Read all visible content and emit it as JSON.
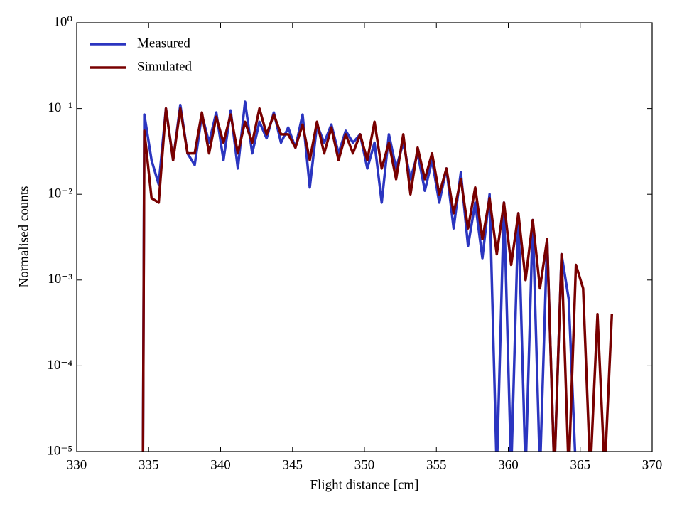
{
  "chart_data": {
    "type": "line",
    "xlabel": "Flight distance [cm]",
    "ylabel": "Normalised counts",
    "xlim": [
      330,
      370
    ],
    "xticks": [
      330,
      335,
      340,
      345,
      350,
      355,
      360,
      365,
      370
    ],
    "ylim": [
      1e-05,
      1
    ],
    "yticks": [
      {
        "value": 1e-05,
        "label": "10⁻⁵"
      },
      {
        "value": 0.0001,
        "label": "10⁻⁴"
      },
      {
        "value": 0.001,
        "label": "10⁻³"
      },
      {
        "value": 0.01,
        "label": "10⁻²"
      },
      {
        "value": 0.1,
        "label": "10⁻¹"
      },
      {
        "value": 1,
        "label": "10⁰"
      }
    ],
    "yscale": "log",
    "grid": false,
    "legend": "upper left",
    "x": [
      334.6,
      334.7,
      335.2,
      335.7,
      336.2,
      336.7,
      337.2,
      337.7,
      338.2,
      338.7,
      339.2,
      339.7,
      340.2,
      340.7,
      341.2,
      341.7,
      342.2,
      342.7,
      343.2,
      343.7,
      344.2,
      344.7,
      345.2,
      345.7,
      346.2,
      346.7,
      347.2,
      347.7,
      348.2,
      348.7,
      349.2,
      349.7,
      350.2,
      350.7,
      351.2,
      351.7,
      352.2,
      352.7,
      353.2,
      353.7,
      354.2,
      354.7,
      355.2,
      355.7,
      356.2,
      356.7,
      357.2,
      357.7,
      358.2,
      358.7,
      359.2,
      359.7,
      360.2,
      360.7,
      361.2,
      361.7,
      362.2,
      362.7,
      363.2,
      363.7,
      364.2,
      364.7,
      365.2,
      365.7,
      366.2,
      366.7,
      367.2
    ],
    "series": [
      {
        "name": "Measured",
        "color": "#2b35c0",
        "values": [
          0,
          0.085,
          0.025,
          0.013,
          0.1,
          0.025,
          0.11,
          0.03,
          0.022,
          0.085,
          0.04,
          0.09,
          0.025,
          0.095,
          0.02,
          0.12,
          0.03,
          0.07,
          0.045,
          0.09,
          0.04,
          0.06,
          0.035,
          0.085,
          0.012,
          0.065,
          0.04,
          0.065,
          0.03,
          0.055,
          0.04,
          0.05,
          0.02,
          0.04,
          0.008,
          0.05,
          0.02,
          0.04,
          0.015,
          0.03,
          0.011,
          0.025,
          0.008,
          0.02,
          0.004,
          0.018,
          0.0025,
          0.008,
          0.0018,
          0.01,
          0,
          0.008,
          0,
          0.006,
          0,
          0.005,
          0,
          0.003,
          0,
          0.002,
          0.0006,
          0,
          null,
          null,
          null,
          null,
          null
        ]
      },
      {
        "name": "Simulated",
        "color": "#780000",
        "values": [
          0,
          0.055,
          0.009,
          0.008,
          0.1,
          0.025,
          0.1,
          0.03,
          0.03,
          0.09,
          0.03,
          0.08,
          0.04,
          0.085,
          0.03,
          0.07,
          0.04,
          0.1,
          0.05,
          0.085,
          0.05,
          0.05,
          0.035,
          0.065,
          0.025,
          0.07,
          0.03,
          0.06,
          0.025,
          0.05,
          0.03,
          0.05,
          0.025,
          0.07,
          0.02,
          0.04,
          0.015,
          0.05,
          0.01,
          0.035,
          0.015,
          0.03,
          0.01,
          0.02,
          0.006,
          0.015,
          0.004,
          0.012,
          0.003,
          0.009,
          0.002,
          0.008,
          0.0015,
          0.006,
          0.001,
          0.005,
          0.0008,
          0.003,
          0,
          0.002,
          0,
          0.0015,
          0.0008,
          0,
          0.0004,
          0,
          0.0004
        ]
      }
    ]
  }
}
